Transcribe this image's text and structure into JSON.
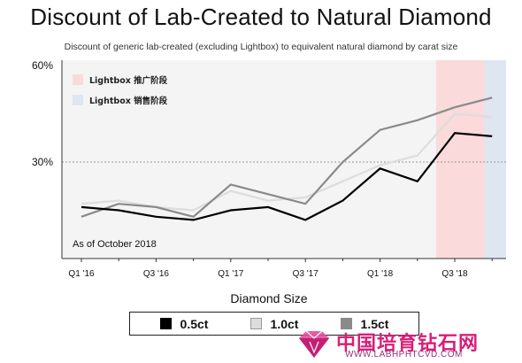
{
  "chart_data": {
    "type": "line",
    "title": "Discount of Lab-Created to Natural Diamond",
    "subtitle": "Discount of generic lab-created (excluding Lightbox) to equivalent natural diamond by carat size",
    "xlabel": "Diamond Size",
    "ylabel": "",
    "ylim": [
      0,
      60
    ],
    "y_ticks": [
      "60%",
      "30%"
    ],
    "y_tick_values": [
      60,
      30
    ],
    "x_tick_labels": [
      "Q1 '16",
      "Q3 '16",
      "Q1 '17",
      "Q3 '17",
      "Q1 '18",
      "Q3 '18"
    ],
    "x_tick_indices": [
      0,
      2,
      4,
      6,
      8,
      10
    ],
    "num_periods": 12,
    "grid": "dashed horizontal line at 30%",
    "annotation": "As of October 2018",
    "shaded_regions": [
      {
        "name": "Lightbox 推广阶段",
        "start": 9.5,
        "end": 10.8,
        "color": "#fadada"
      },
      {
        "name": "Lightbox 销售阶段",
        "start": 10.8,
        "end": 11.8,
        "color": "#dde6f1"
      }
    ],
    "legend_position": "bottom",
    "series": [
      {
        "name": "0.5ct",
        "color": "#000000",
        "values": [
          16,
          15,
          13,
          12,
          15,
          16,
          12,
          18,
          28,
          24,
          39,
          38
        ]
      },
      {
        "name": "1.0ct",
        "color": "#dddddd",
        "values": [
          17,
          18,
          16,
          15,
          21,
          18,
          19,
          24,
          29,
          32,
          45,
          44
        ]
      },
      {
        "name": "1.5ct",
        "color": "#8a8a8a",
        "values": [
          13,
          17,
          16,
          13,
          23,
          20,
          17,
          30,
          40,
          43,
          47,
          50
        ]
      }
    ]
  },
  "watermark": {
    "text_cn": "中国培育钻石网",
    "url": "WWW.LABHPHTCVD.COM"
  }
}
